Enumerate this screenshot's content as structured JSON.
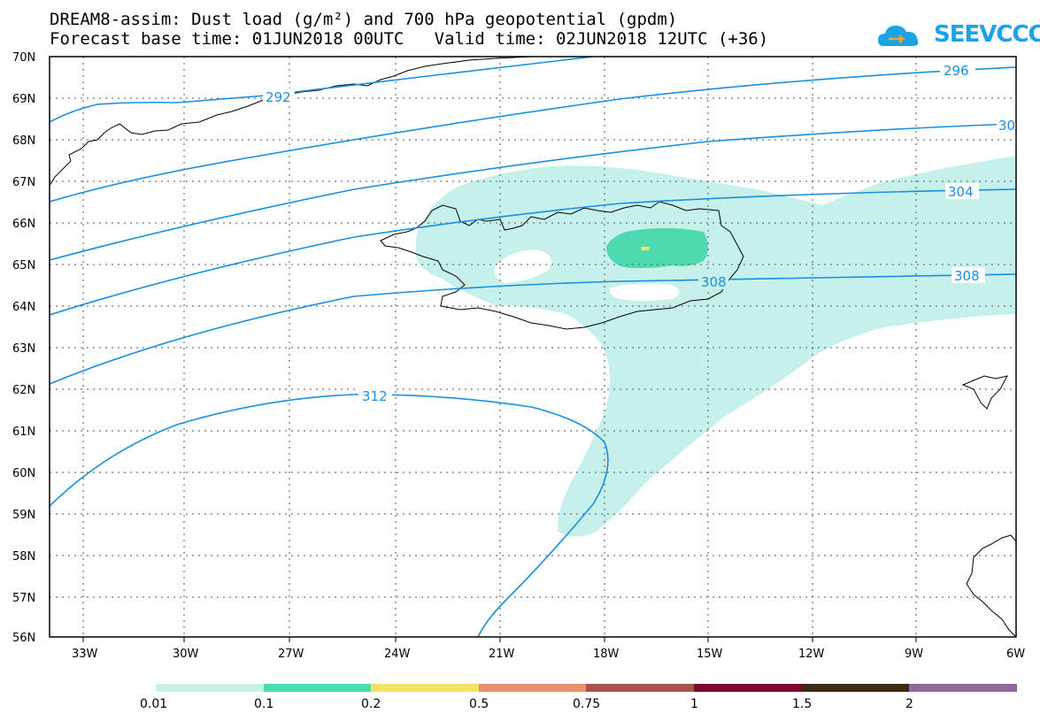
{
  "header": {
    "title_line1": "DREAM8-assim: Dust load (g/m²) and 700 hPa geopotential (gpdm)",
    "title_line2": "Forecast base time: 01JUN2018 00UTC   Valid time: 02JUN2018 12UTC (+36)"
  },
  "logo": {
    "text": "SEEVCCC",
    "icon": "cloud-logo-icon",
    "color": "#1aa3e6"
  },
  "map": {
    "lat_labels": [
      "70N",
      "69N",
      "68N",
      "67N",
      "66N",
      "65N",
      "64N",
      "63N",
      "62N",
      "61N",
      "60N",
      "59N",
      "58N",
      "57N",
      "56N"
    ],
    "lon_labels": [
      "33W",
      "30W",
      "27W",
      "24W",
      "21W",
      "18W",
      "15W",
      "12W",
      "9W",
      "6W"
    ],
    "contour_labels": [
      "292",
      "296",
      "30",
      "304",
      "308",
      "308",
      "312"
    ],
    "contour_color": "#1a8fe0",
    "dust_colors": {
      "level1": "#c6f0ea",
      "level2": "#4fd9b0",
      "level3": "#f5e26b"
    }
  },
  "colorbar": {
    "labels": [
      "0.01",
      "0.1",
      "0.2",
      "0.5",
      "0.75",
      "1",
      "1.5",
      "2"
    ],
    "colors": [
      "#c6f0ea",
      "#4fd9b0",
      "#f5e26b",
      "#e8916a",
      "#a8534b",
      "#7a0b2e",
      "#3d2a14",
      "#8e6aa0"
    ]
  }
}
